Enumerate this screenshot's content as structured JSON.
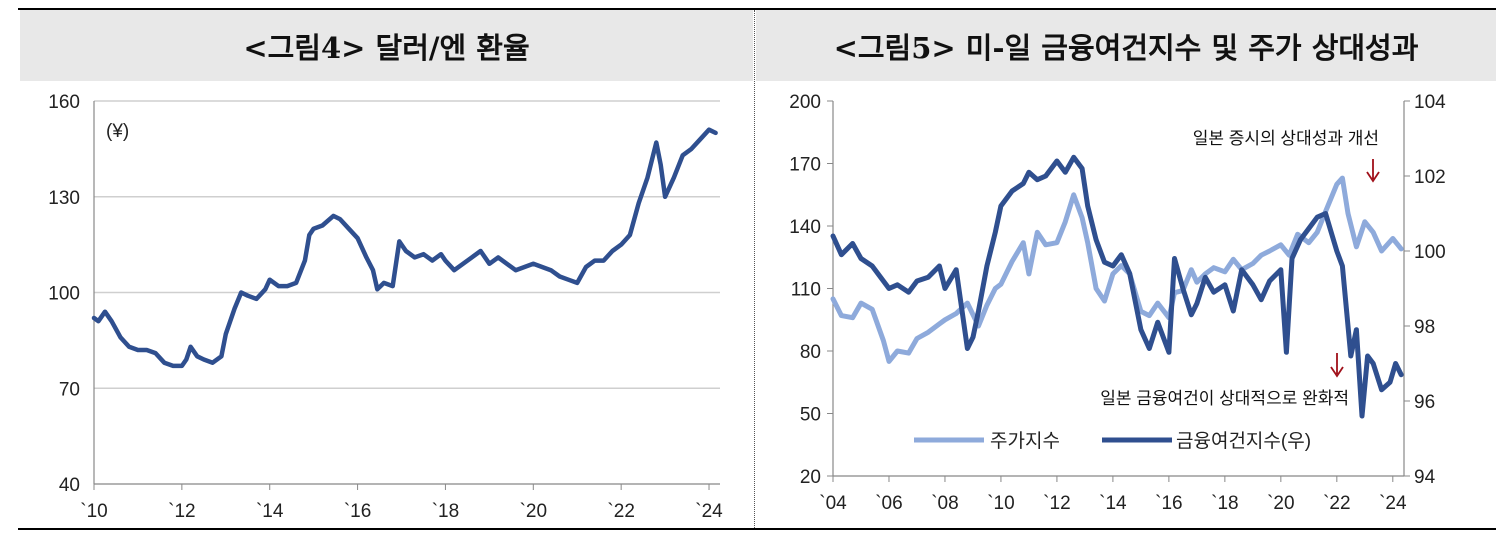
{
  "charts": [
    {
      "title": "<그림4> 달러/엔 환율",
      "unit_label": "(¥)",
      "chart_data": {
        "type": "line",
        "title": "<그림4> 달러/엔 환율",
        "xlabel": "",
        "ylabel": "",
        "xlim": [
          2010,
          2024.25
        ],
        "ylim": [
          40,
          160
        ],
        "yticks": [
          40,
          70,
          100,
          130,
          160
        ],
        "xticks": [
          2010,
          2012,
          2014,
          2016,
          2018,
          2020,
          2022,
          2024
        ],
        "xtick_labels": [
          "`10",
          "`12",
          "`14",
          "`16",
          "`18",
          "`20",
          "`22",
          "`24"
        ],
        "grid": true,
        "legend": "none",
        "series": [
          {
            "color": "#2f4f8f",
            "x": [
              2010.0,
              2010.1,
              2010.25,
              2010.4,
              2010.6,
              2010.8,
              2011.0,
              2011.2,
              2011.4,
              2011.6,
              2011.8,
              2012.0,
              2012.1,
              2012.2,
              2012.35,
              2012.5,
              2012.7,
              2012.9,
              2013.0,
              2013.2,
              2013.35,
              2013.5,
              2013.7,
              2013.9,
              2014.0,
              2014.2,
              2014.4,
              2014.6,
              2014.8,
              2014.9,
              2015.0,
              2015.2,
              2015.45,
              2015.6,
              2015.8,
              2016.0,
              2016.2,
              2016.35,
              2016.45,
              2016.6,
              2016.8,
              2016.95,
              2017.1,
              2017.3,
              2017.5,
              2017.7,
              2017.9,
              2018.0,
              2018.2,
              2018.4,
              2018.6,
              2018.8,
              2019.0,
              2019.2,
              2019.4,
              2019.6,
              2019.8,
              2020.0,
              2020.2,
              2020.4,
              2020.6,
              2020.8,
              2021.0,
              2021.2,
              2021.4,
              2021.6,
              2021.8,
              2022.0,
              2022.2,
              2022.4,
              2022.6,
              2022.8,
              2022.9,
              2023.0,
              2023.2,
              2023.4,
              2023.6,
              2023.8,
              2024.0,
              2024.15
            ],
            "y": [
              92,
              91,
              94,
              91,
              86,
              83,
              82,
              82,
              81,
              78,
              77,
              77,
              79,
              83,
              80,
              79,
              78,
              80,
              87,
              95,
              100,
              99,
              98,
              101,
              104,
              102,
              102,
              103,
              110,
              118,
              120,
              121,
              124,
              123,
              120,
              117,
              111,
              107,
              101,
              103,
              102,
              116,
              113,
              111,
              112,
              110,
              112,
              110,
              107,
              109,
              111,
              113,
              109,
              111,
              109,
              107,
              108,
              109,
              108,
              107,
              105,
              104,
              103,
              108,
              110,
              110,
              113,
              115,
              118,
              128,
              136,
              147,
              140,
              130,
              136,
              143,
              145,
              148,
              151,
              150
            ]
          }
        ]
      }
    },
    {
      "title": "<그림5> 미-일 금융여건지수 및 주가 상대성과",
      "annotations": [
        "일본 증시의 상대성과 개선",
        "일본 금융여건이 상대적으로 완화적"
      ],
      "arrow_color": "#a0101a",
      "legend_items": [
        "주가지수",
        "금융여건지수(우)"
      ],
      "chart_data": {
        "type": "line",
        "title": "<그림5> 미-일 금융여건지수 및 주가 상대성과",
        "xlabel": "",
        "ylabel": "",
        "xlim": [
          2004,
          2024.4
        ],
        "ylim": [
          20,
          200
        ],
        "y2lim": [
          94,
          104
        ],
        "yticks": [
          20,
          50,
          80,
          110,
          140,
          170,
          200
        ],
        "y2ticks": [
          94,
          96,
          98,
          100,
          102,
          104
        ],
        "xticks": [
          2004,
          2006,
          2008,
          2010,
          2012,
          2014,
          2016,
          2018,
          2020,
          2022,
          2024
        ],
        "xtick_labels": [
          "`04",
          "`06",
          "`08",
          "`10",
          "`12",
          "`14",
          "`16",
          "`18",
          "`20",
          "`22",
          "`24"
        ],
        "grid": false,
        "legend": "bottom",
        "series": [
          {
            "name": "주가지수",
            "axis": "left",
            "color": "#8eaadb",
            "x": [
              2004.0,
              2004.3,
              2004.7,
              2005.0,
              2005.4,
              2005.8,
              2006.0,
              2006.3,
              2006.7,
              2007.0,
              2007.4,
              2007.8,
              2008.0,
              2008.4,
              2008.8,
              2009.2,
              2009.5,
              2009.8,
              2010.0,
              2010.4,
              2010.8,
              2011.0,
              2011.3,
              2011.6,
              2012.0,
              2012.3,
              2012.6,
              2012.9,
              2013.1,
              2013.4,
              2013.7,
              2014.0,
              2014.3,
              2014.6,
              2015.0,
              2015.3,
              2015.6,
              2016.0,
              2016.2,
              2016.5,
              2016.8,
              2017.0,
              2017.3,
              2017.6,
              2018.0,
              2018.3,
              2018.6,
              2019.0,
              2019.3,
              2019.6,
              2020.0,
              2020.3,
              2020.6,
              2021.0,
              2021.3,
              2021.6,
              2022.0,
              2022.2,
              2022.4,
              2022.7,
              2023.0,
              2023.3,
              2023.6,
              2024.0,
              2024.3
            ],
            "y": [
              105,
              97,
              96,
              103,
              100,
              85,
              75,
              80,
              79,
              86,
              89,
              93,
              95,
              98,
              103,
              92,
              102,
              110,
              112,
              123,
              132,
              117,
              137,
              131,
              132,
              142,
              155,
              144,
              132,
              110,
              104,
              117,
              121,
              117,
              99,
              97,
              103,
              96,
              108,
              109,
              119,
              113,
              117,
              120,
              118,
              124,
              119,
              122,
              126,
              128,
              131,
              126,
              136,
              132,
              137,
              147,
              160,
              163,
              146,
              130,
              142,
              137,
              128,
              134,
              129
            ]
          },
          {
            "name": "금융여건지수(우)",
            "axis": "right",
            "color": "#2f4f8f",
            "x": [
              2004.0,
              2004.3,
              2004.7,
              2005.0,
              2005.4,
              2005.8,
              2006.0,
              2006.3,
              2006.7,
              2007.0,
              2007.4,
              2007.8,
              2008.0,
              2008.4,
              2008.8,
              2009.0,
              2009.2,
              2009.5,
              2009.8,
              2010.0,
              2010.4,
              2010.8,
              2011.0,
              2011.3,
              2011.6,
              2012.0,
              2012.3,
              2012.6,
              2012.9,
              2013.1,
              2013.4,
              2013.7,
              2014.0,
              2014.3,
              2014.6,
              2015.0,
              2015.3,
              2015.6,
              2016.0,
              2016.2,
              2016.5,
              2016.8,
              2017.0,
              2017.3,
              2017.6,
              2018.0,
              2018.3,
              2018.6,
              2019.0,
              2019.3,
              2019.6,
              2020.0,
              2020.2,
              2020.4,
              2020.7,
              2021.0,
              2021.3,
              2021.6,
              2021.8,
              2022.0,
              2022.2,
              2022.5,
              2022.7,
              2022.9,
              2023.1,
              2023.3,
              2023.6,
              2023.9,
              2024.1,
              2024.3
            ],
            "y": [
              100.4,
              99.9,
              100.2,
              99.8,
              99.6,
              99.2,
              99.0,
              99.1,
              98.9,
              99.2,
              99.3,
              99.6,
              99.0,
              99.5,
              97.4,
              97.7,
              98.4,
              99.6,
              100.5,
              101.2,
              101.6,
              101.8,
              102.1,
              101.9,
              102.0,
              102.4,
              102.1,
              102.5,
              102.2,
              101.2,
              100.3,
              99.7,
              99.6,
              99.9,
              99.4,
              97.9,
              97.4,
              98.1,
              97.3,
              99.8,
              99.0,
              98.3,
              98.6,
              99.3,
              98.9,
              99.1,
              98.4,
              99.5,
              99.1,
              98.7,
              99.2,
              99.5,
              97.3,
              99.8,
              100.3,
              100.6,
              100.9,
              101.0,
              100.5,
              100.0,
              99.6,
              97.2,
              97.9,
              95.6,
              97.2,
              97.0,
              96.3,
              96.5,
              97.0,
              96.7
            ]
          }
        ]
      }
    }
  ]
}
